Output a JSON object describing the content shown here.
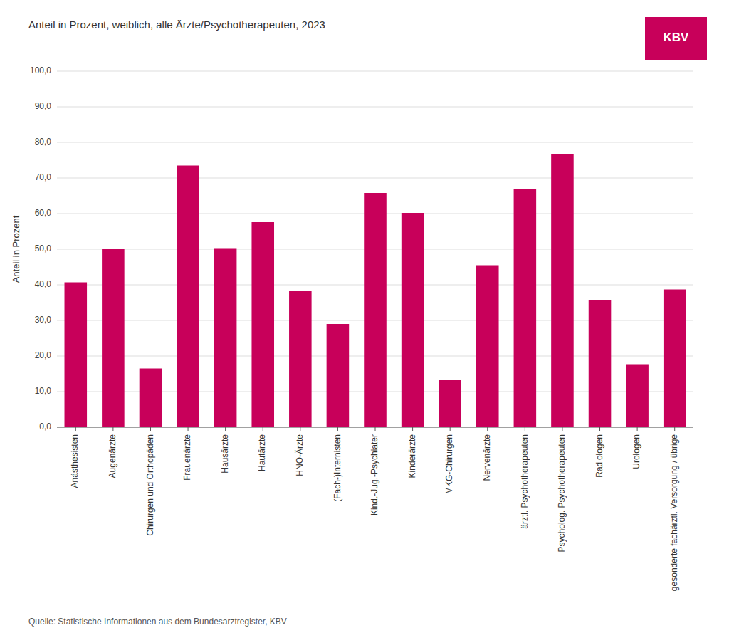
{
  "chart_data": {
    "type": "bar",
    "title": "Anteil in Prozent, weiblich, alle Ärzte/Psychotherapeuten, 2023",
    "ylabel": "Anteil in Prozent",
    "source": "Quelle: Statistische Informationen aus dem Bundesarztregister, KBV",
    "annotations": [
      {
        "text": "KBV"
      }
    ],
    "color": "#C8005A",
    "categories": [
      "Anästhesisten",
      "Augenärzte",
      "Chirurgen und Orthopäden",
      "Frauenärzte",
      "Hausärzte",
      "Hautärzte",
      "HNO-Ärzte",
      "(Fach-)Internisten",
      "Kind.-Jug.-Psychiater",
      "Kinderärzte",
      "MKG-Chirurgen",
      "Nervenärzte",
      "ärztl. Psychotherapeuten",
      "Psycholog. Psychotherapeuten",
      "Radiologen",
      "Urologen",
      "gesonderte fachärztl. Versorgung / übrige"
    ],
    "values": [
      40.7,
      50.1,
      16.5,
      73.5,
      50.3,
      57.6,
      38.2,
      29.0,
      65.8,
      60.2,
      13.3,
      45.5,
      67.0,
      76.8,
      35.7,
      17.7,
      38.7
    ],
    "ylim": [
      0,
      100
    ],
    "yticks": [
      {
        "value": 0,
        "label": "0,0"
      },
      {
        "value": 10,
        "label": "10,0"
      },
      {
        "value": 20,
        "label": "20,0"
      },
      {
        "value": 30,
        "label": "30,0"
      },
      {
        "value": 40,
        "label": "40,0"
      },
      {
        "value": 50,
        "label": "50,0"
      },
      {
        "value": 60,
        "label": "60,0"
      },
      {
        "value": 70,
        "label": "70,0"
      },
      {
        "value": 80,
        "label": "80,0"
      },
      {
        "value": 90,
        "label": "90,0"
      },
      {
        "value": 100,
        "label": "100,0"
      }
    ],
    "grid": true
  }
}
